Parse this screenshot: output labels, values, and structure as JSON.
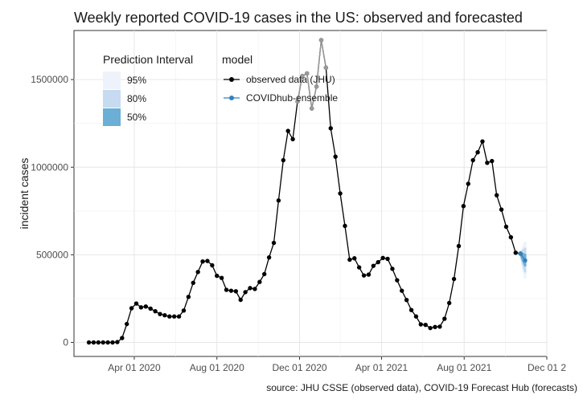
{
  "chart_data": {
    "type": "line",
    "title": "Weekly reported COVID-19 cases in the US: observed and forecasted",
    "xlabel": "",
    "ylabel": "incident cases",
    "caption": "source: JHU CSSE (observed data), COVID-19 Forecast Hub (forecasts)",
    "x_range": [
      "2020-01-03",
      "2021-12-01"
    ],
    "ylim": [
      -80000,
      1780000
    ],
    "x_ticks": [
      {
        "date": "2020-04-01",
        "label": "Apr 01 2020"
      },
      {
        "date": "2020-08-01",
        "label": "Aug 01 2020"
      },
      {
        "date": "2020-12-01",
        "label": "Dec 01 2020"
      },
      {
        "date": "2021-04-01",
        "label": "Apr 01 2021"
      },
      {
        "date": "2021-08-01",
        "label": "Aug 01 2021"
      },
      {
        "date": "2021-12-01",
        "label": "Dec 01 2"
      }
    ],
    "y_ticks": [
      {
        "value": 0,
        "label": "0"
      },
      {
        "value": 500000,
        "label": "500000"
      },
      {
        "value": 1000000,
        "label": "1000000"
      },
      {
        "value": 1500000,
        "label": "1500000"
      }
    ],
    "grid": true,
    "legend_placement": "top-left",
    "legend": {
      "interval_title": "Prediction Interval",
      "intervals": [
        {
          "label": "95%",
          "color": "#eef3fb"
        },
        {
          "label": "80%",
          "color": "#c6dbef"
        },
        {
          "label": "50%",
          "color": "#6baed6"
        }
      ],
      "model_title": "model",
      "models": [
        {
          "label": "observed data (JHU)",
          "color": "#000000"
        },
        {
          "label": "COVIDhub-ensemble",
          "color": "#3182bd"
        }
      ]
    },
    "series": [
      {
        "name": "observed data (JHU)",
        "color": "#000000",
        "points": [
          [
            "2020-01-25",
            0
          ],
          [
            "2020-02-01",
            0
          ],
          [
            "2020-02-08",
            0
          ],
          [
            "2020-02-15",
            0
          ],
          [
            "2020-02-22",
            0
          ],
          [
            "2020-02-29",
            0
          ],
          [
            "2020-03-07",
            2000
          ],
          [
            "2020-03-14",
            25000
          ],
          [
            "2020-03-21",
            105000
          ],
          [
            "2020-03-28",
            195000
          ],
          [
            "2020-04-04",
            222000
          ],
          [
            "2020-04-11",
            200000
          ],
          [
            "2020-04-18",
            205000
          ],
          [
            "2020-04-25",
            193000
          ],
          [
            "2020-05-02",
            178000
          ],
          [
            "2020-05-09",
            162000
          ],
          [
            "2020-05-16",
            155000
          ],
          [
            "2020-05-23",
            148000
          ],
          [
            "2020-05-30",
            148000
          ],
          [
            "2020-06-06",
            148000
          ],
          [
            "2020-06-13",
            182000
          ],
          [
            "2020-06-20",
            260000
          ],
          [
            "2020-06-27",
            340000
          ],
          [
            "2020-07-04",
            402000
          ],
          [
            "2020-07-11",
            462000
          ],
          [
            "2020-07-18",
            465000
          ],
          [
            "2020-07-25",
            440000
          ],
          [
            "2020-08-01",
            380000
          ],
          [
            "2020-08-08",
            368000
          ],
          [
            "2020-08-15",
            300000
          ],
          [
            "2020-08-22",
            295000
          ],
          [
            "2020-08-29",
            292000
          ],
          [
            "2020-09-05",
            243000
          ],
          [
            "2020-09-12",
            287000
          ],
          [
            "2020-09-19",
            310000
          ],
          [
            "2020-09-26",
            305000
          ],
          [
            "2020-10-03",
            345000
          ],
          [
            "2020-10-10",
            390000
          ],
          [
            "2020-10-17",
            485000
          ],
          [
            "2020-10-24",
            568000
          ],
          [
            "2020-10-31",
            810000
          ],
          [
            "2020-11-07",
            1040000
          ],
          [
            "2020-11-14",
            1207000
          ],
          [
            "2020-11-21",
            1160000
          ],
          [
            "2020-11-28",
            1375000
          ],
          [
            "2020-12-05",
            1520000
          ],
          [
            "2020-12-12",
            1535000
          ],
          [
            "2020-12-19",
            1335000
          ],
          [
            "2020-12-26",
            1460000
          ],
          [
            "2021-01-02",
            1725000
          ],
          [
            "2021-01-09",
            1568000
          ],
          [
            "2021-01-16",
            1222000
          ],
          [
            "2021-01-23",
            1060000
          ],
          [
            "2021-01-30",
            850000
          ],
          [
            "2021-02-06",
            665000
          ],
          [
            "2021-02-13",
            472000
          ],
          [
            "2021-02-20",
            480000
          ],
          [
            "2021-02-27",
            428000
          ],
          [
            "2021-03-06",
            382000
          ],
          [
            "2021-03-13",
            387000
          ],
          [
            "2021-03-20",
            437000
          ],
          [
            "2021-03-27",
            458000
          ],
          [
            "2021-04-03",
            482000
          ],
          [
            "2021-04-10",
            477000
          ],
          [
            "2021-04-17",
            420000
          ],
          [
            "2021-04-24",
            355000
          ],
          [
            "2021-05-01",
            295000
          ],
          [
            "2021-05-08",
            242000
          ],
          [
            "2021-05-15",
            185000
          ],
          [
            "2021-05-22",
            148000
          ],
          [
            "2021-05-29",
            103000
          ],
          [
            "2021-06-05",
            100000
          ],
          [
            "2021-06-12",
            82000
          ],
          [
            "2021-06-19",
            88000
          ],
          [
            "2021-06-26",
            90000
          ],
          [
            "2021-07-03",
            135000
          ],
          [
            "2021-07-10",
            225000
          ],
          [
            "2021-07-17",
            362000
          ],
          [
            "2021-07-24",
            550000
          ],
          [
            "2021-07-31",
            778000
          ],
          [
            "2021-08-07",
            905000
          ],
          [
            "2021-08-14",
            1040000
          ],
          [
            "2021-08-21",
            1085000
          ],
          [
            "2021-08-28",
            1147000
          ],
          [
            "2021-09-04",
            1025000
          ],
          [
            "2021-09-11",
            1035000
          ],
          [
            "2021-09-18",
            840000
          ],
          [
            "2021-09-25",
            758000
          ],
          [
            "2021-10-02",
            660000
          ],
          [
            "2021-10-09",
            600000
          ],
          [
            "2021-10-16",
            512000
          ],
          [
            "2021-10-23",
            507000
          ]
        ]
      },
      {
        "name": "observed data (JHU)",
        "color": "#999999",
        "points": [
          [
            "2020-11-28",
            1375000
          ],
          [
            "2020-12-05",
            1520000
          ],
          [
            "2020-12-12",
            1535000
          ],
          [
            "2020-12-19",
            1335000
          ],
          [
            "2020-12-26",
            1460000
          ],
          [
            "2021-01-02",
            1725000
          ],
          [
            "2021-01-09",
            1568000
          ]
        ]
      },
      {
        "name": "COVIDhub-ensemble",
        "color": "#3182bd",
        "points": [
          [
            "2021-10-23",
            507000
          ],
          [
            "2021-10-30",
            468000
          ]
        ],
        "intervals": [
          {
            "level": "95%",
            "color": "#eef3fb",
            "date": "2021-10-30",
            "lower": 370000,
            "upper": 570000
          },
          {
            "level": "80%",
            "color": "#c6dbef",
            "date": "2021-10-30",
            "lower": 405000,
            "upper": 535000
          },
          {
            "level": "50%",
            "color": "#6baed6",
            "date": "2021-10-30",
            "lower": 440000,
            "upper": 500000
          }
        ]
      }
    ]
  }
}
